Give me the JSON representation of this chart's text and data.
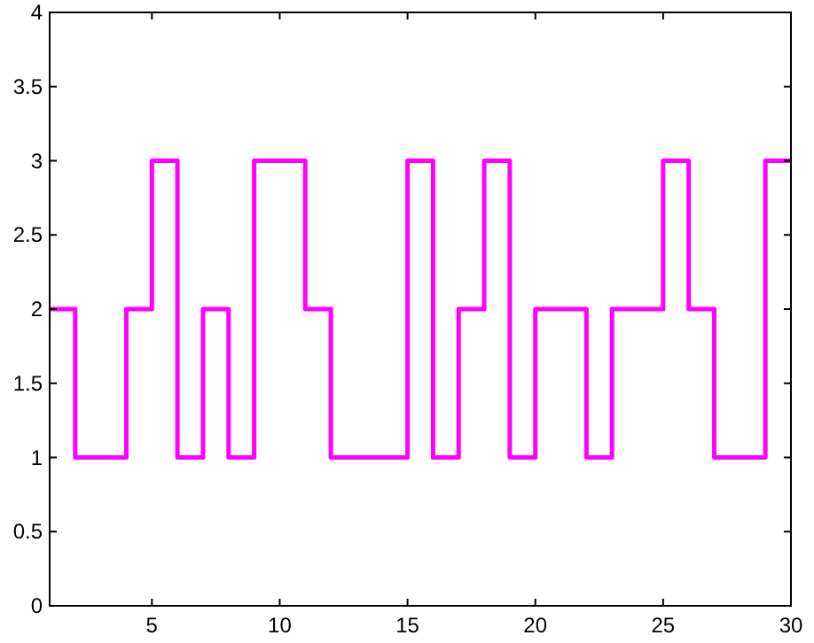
{
  "chart_data": {
    "type": "step",
    "x": [
      1,
      2,
      3,
      4,
      5,
      6,
      7,
      8,
      9,
      10,
      11,
      12,
      13,
      14,
      15,
      16,
      17,
      18,
      19,
      20,
      21,
      22,
      23,
      24,
      25,
      26,
      27,
      28,
      29,
      30
    ],
    "series": [
      {
        "color": "#ff00ff",
        "values": [
          2,
          1,
          1,
          2,
          3,
          1,
          2,
          1,
          3,
          3,
          2,
          1,
          1,
          1,
          3,
          1,
          2,
          3,
          1,
          2,
          2,
          1,
          2,
          2,
          3,
          2,
          1,
          1,
          3,
          3
        ]
      }
    ],
    "xlim": [
      1,
      30
    ],
    "xticks": [
      5,
      10,
      15,
      20,
      25,
      30
    ],
    "ylim": [
      0,
      4
    ],
    "yticks": [
      0,
      0.5,
      1,
      1.5,
      2,
      2.5,
      3,
      3.5,
      4
    ],
    "grid": false,
    "marker": "none",
    "line_style": "solid"
  }
}
